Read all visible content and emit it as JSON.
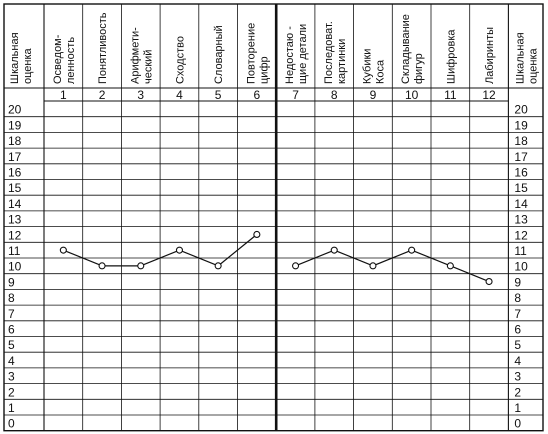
{
  "chart_data": {
    "type": "line",
    "scale_label": "Шкальная оценка",
    "subtests": [
      {
        "num": "1",
        "lines": [
          "Осведом-",
          "ленность"
        ]
      },
      {
        "num": "2",
        "lines": [
          "Понятливость"
        ]
      },
      {
        "num": "3",
        "lines": [
          "Арифмети-",
          "ческий"
        ]
      },
      {
        "num": "4",
        "lines": [
          "Сходство"
        ]
      },
      {
        "num": "5",
        "lines": [
          "Словарный"
        ]
      },
      {
        "num": "6",
        "lines": [
          "Повторение",
          "цифр"
        ]
      },
      {
        "num": "7",
        "lines": [
          "Недостаю -",
          "щие детали"
        ]
      },
      {
        "num": "8",
        "lines": [
          "Последоват.",
          "картинки"
        ]
      },
      {
        "num": "9",
        "lines": [
          "Кубики",
          "Коса"
        ]
      },
      {
        "num": "10",
        "lines": [
          "Складывание",
          "фигур"
        ]
      },
      {
        "num": "11",
        "lines": [
          "Шифровка"
        ]
      },
      {
        "num": "12",
        "lines": [
          "Лабиринты"
        ]
      }
    ],
    "rows": [
      "20",
      "19",
      "18",
      "17",
      "16",
      "15",
      "14",
      "13",
      "12",
      "11",
      "10",
      "9",
      "8",
      "7",
      "6",
      "5",
      "4",
      "3",
      "2",
      "1",
      "0"
    ],
    "series": [
      {
        "values": [
          11,
          10,
          10,
          11,
          10,
          12,
          null,
          null,
          null,
          null,
          null,
          null
        ]
      },
      {
        "values": [
          null,
          null,
          null,
          null,
          null,
          null,
          10,
          11,
          10,
          11,
          10,
          9
        ]
      }
    ],
    "ylim": [
      0,
      20
    ],
    "grid": true
  }
}
